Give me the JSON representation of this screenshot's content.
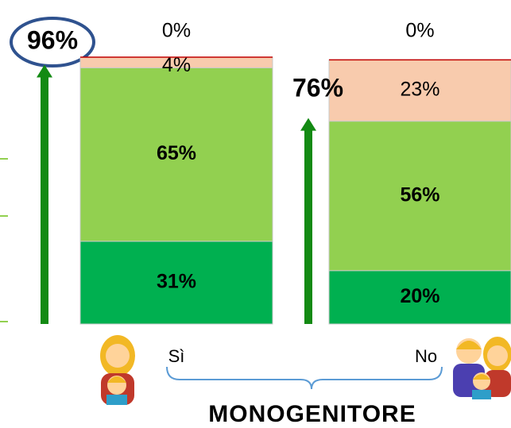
{
  "chart_data": {
    "type": "stacked_bar",
    "title": "MONOGENITORE",
    "categories": [
      "Sì",
      "No"
    ],
    "series": [
      {
        "color": "#00b050",
        "values": [
          31,
          20
        ],
        "value_labels": [
          "31%",
          "20%"
        ],
        "bold": true
      },
      {
        "color": "#92d050",
        "values": [
          65,
          56
        ],
        "value_labels": [
          "65%",
          "56%"
        ],
        "bold": true
      },
      {
        "color": "#f8cbad",
        "values": [
          4,
          23
        ],
        "value_labels": [
          "4%",
          "23%"
        ],
        "bold": false
      },
      {
        "color": "#c00000",
        "values": [
          0,
          0
        ],
        "value_labels": [
          "0%",
          "0%"
        ],
        "bold": false
      }
    ],
    "totals": {
      "color": "#138a13",
      "values": [
        96,
        76
      ],
      "value_labels": [
        "96%",
        "76%"
      ]
    },
    "ylim": [
      0,
      100
    ]
  }
}
